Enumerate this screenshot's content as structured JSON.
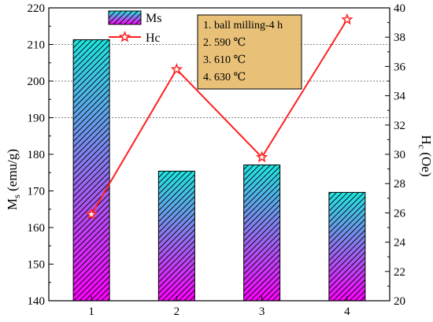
{
  "chart_data": {
    "type": "bar+line",
    "categories": [
      "1",
      "2",
      "3",
      "4"
    ],
    "series": [
      {
        "name": "Ms",
        "type": "bar",
        "axis": "left",
        "values": [
          211.3,
          175.4,
          177.1,
          169.6
        ],
        "fill_top": "#1ee6e0",
        "fill_bottom": "#ff00ff"
      },
      {
        "name": "Hc",
        "type": "line",
        "axis": "right",
        "marker": "star",
        "color": "#ff2020",
        "values": [
          25.9,
          35.8,
          29.8,
          39.2
        ]
      }
    ],
    "left_axis": {
      "label_main": "M",
      "label_sub": "s",
      "label_rest": " (emu/g)",
      "ylim": [
        140,
        220
      ],
      "ticks": [
        "140",
        "150",
        "160",
        "170",
        "180",
        "190",
        "200",
        "210",
        "220"
      ]
    },
    "right_axis": {
      "label_main": "H",
      "label_sub": "c",
      "label_rest": " (Oe)",
      "ylim": [
        20,
        40
      ],
      "ticks": [
        "20",
        "22",
        "24",
        "26",
        "28",
        "30",
        "32",
        "34",
        "36",
        "38",
        "40"
      ]
    },
    "gridlines_left": [
      190,
      200,
      210
    ],
    "legend": {
      "position": "top-left",
      "entries": [
        "Ms",
        "Hc"
      ]
    },
    "annotation": {
      "lines": [
        "1. ball milling-4 h",
        "2. 590 ℃",
        "3. 610 ℃",
        "4. 630 ℃"
      ],
      "background": "#e8c077"
    }
  }
}
